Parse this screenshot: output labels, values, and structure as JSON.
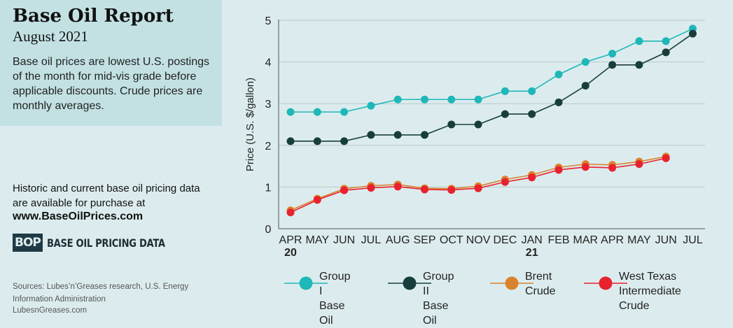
{
  "header": {
    "title": "Base Oil Report",
    "subtitle": "August 2021",
    "description": "Base oil prices are lowest U.S. postings of the month for mid-vis grade before applicable discounts. Crude prices are monthly averages."
  },
  "promo": {
    "text": "Historic and current base oil pricing data are available for purchase at",
    "url": "www.BaseOilPrices.com",
    "logo_mark": "BOP",
    "logo_text": "BASE OIL PRICING DATA"
  },
  "footer": {
    "sources": "Sources: Lubes’n’Greases research, U.S. Energy Information Administration",
    "website": "LubesnGreases.com"
  },
  "legend": [
    {
      "label_line1": "Group I",
      "label_line2": "Base Oil",
      "color": "#1fb7b8",
      "line_color": "#1fb7b8"
    },
    {
      "label_line1": "Group II",
      "label_line2": "Base Oil",
      "color": "#173e3c",
      "line_color": "#173e3c"
    },
    {
      "label_line1": "Brent",
      "label_line2": "Crude",
      "color": "#d9832e",
      "line_color": "#d9832e"
    },
    {
      "label_line1": "West Texas",
      "label_line2": "Intermediate Crude",
      "color": "#e8222f",
      "line_color": "#e8222f"
    }
  ],
  "chart_data": {
    "type": "line",
    "ylabel": "Price (U.S. $/gallon)",
    "ylim": [
      0,
      5
    ],
    "yticks": [
      0,
      1,
      2,
      3,
      4,
      5
    ],
    "categories": [
      "APR",
      "MAY",
      "JUN",
      "JUL",
      "AUG",
      "SEP",
      "OCT",
      "NOV",
      "DEC",
      "JAN",
      "FEB",
      "MAR",
      "APR",
      "MAY",
      "JUN",
      "JUL"
    ],
    "year_labels": [
      {
        "index": 0,
        "label": "20"
      },
      {
        "index": 9,
        "label": "21"
      }
    ],
    "grid": "horizontal",
    "series": [
      {
        "name": "Group I Base Oil",
        "color": "#1fb7b8",
        "values": [
          2.8,
          2.8,
          2.8,
          2.95,
          3.1,
          3.1,
          3.1,
          3.1,
          3.3,
          3.3,
          3.7,
          4.0,
          4.2,
          4.5,
          4.5,
          4.8
        ]
      },
      {
        "name": "Group II Base Oil",
        "color": "#173e3c",
        "values": [
          2.1,
          2.1,
          2.1,
          2.25,
          2.25,
          2.25,
          2.5,
          2.5,
          2.75,
          2.75,
          3.03,
          3.43,
          3.93,
          3.93,
          4.23,
          4.68
        ]
      },
      {
        "name": "Brent Crude",
        "color": "#d9832e",
        "values": [
          0.44,
          0.72,
          0.96,
          1.03,
          1.06,
          0.97,
          0.96,
          1.02,
          1.18,
          1.29,
          1.47,
          1.55,
          1.53,
          1.61,
          1.73,
          null
        ]
      },
      {
        "name": "West Texas Intermediate Crude",
        "color": "#e8222f",
        "values": [
          0.39,
          0.69,
          0.92,
          0.98,
          1.01,
          0.94,
          0.93,
          0.97,
          1.12,
          1.23,
          1.41,
          1.48,
          1.46,
          1.55,
          1.69,
          null
        ]
      }
    ]
  }
}
